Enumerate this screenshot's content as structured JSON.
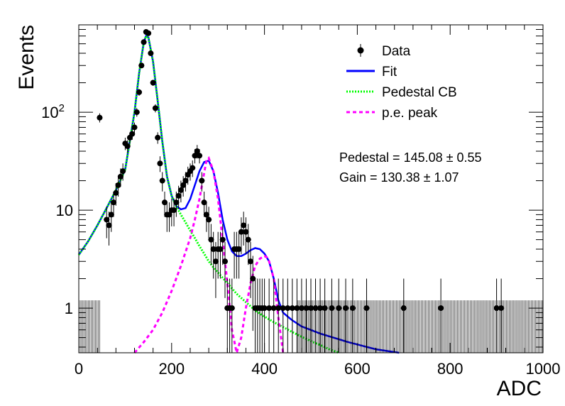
{
  "chart_data": {
    "type": "scatter",
    "xlabel": "ADC",
    "ylabel": "Events",
    "xlim": [
      0,
      1000
    ],
    "ylim": [
      0.35,
      780
    ],
    "yscale": "log",
    "x_ticks": [
      0,
      200,
      400,
      600,
      800,
      1000
    ],
    "y_ticks": [
      {
        "value": 1,
        "label": "1"
      },
      {
        "value": 10,
        "label": "10"
      },
      {
        "value": 100,
        "label": "10",
        "sup": "2"
      }
    ],
    "legend_position": "top-right",
    "legend": [
      {
        "label": "Data",
        "style": "points"
      },
      {
        "label": "Fit",
        "style": "solid",
        "color": "#0000ff"
      },
      {
        "label": "Pedestal CB",
        "style": "dotted",
        "color": "#00ff00"
      },
      {
        "label": "p.e. peak",
        "style": "dashed",
        "color": "#ff00ff"
      }
    ],
    "annotations": [
      "Pedestal = 145.08 ± 0.55",
      "Gain = 130.38 ± 1.07"
    ],
    "series": [
      {
        "name": "Data",
        "style": "points",
        "x": [
          45,
          60,
          65,
          70,
          75,
          80,
          85,
          90,
          95,
          100,
          105,
          110,
          115,
          120,
          125,
          130,
          135,
          140,
          145,
          150,
          155,
          160,
          165,
          170,
          175,
          180,
          185,
          190,
          195,
          200,
          205,
          210,
          215,
          220,
          225,
          230,
          235,
          240,
          245,
          250,
          255,
          260,
          265,
          270,
          275,
          280,
          285,
          290,
          295,
          300,
          305,
          310,
          315,
          320,
          325,
          330,
          335,
          340,
          345,
          350,
          355,
          360,
          365,
          370,
          375,
          380,
          385,
          390,
          395,
          400,
          410,
          420,
          430,
          440,
          450,
          460,
          470,
          480,
          490,
          500,
          510,
          520,
          530,
          545,
          560,
          575,
          590,
          620,
          700,
          780,
          900,
          910
        ],
        "y": [
          88,
          8,
          7,
          9,
          12,
          15,
          18,
          22,
          25,
          48,
          45,
          55,
          60,
          70,
          100,
          160,
          300,
          520,
          660,
          640,
          400,
          200,
          110,
          55,
          30,
          20,
          12,
          9,
          9,
          10,
          10,
          12,
          14,
          16,
          18,
          20,
          23,
          25,
          27,
          36,
          40,
          36,
          20,
          12,
          9,
          8,
          5,
          4,
          3,
          4,
          4,
          5,
          3,
          1,
          1,
          1,
          4,
          4,
          4,
          6,
          7,
          6,
          5,
          3,
          2,
          1,
          1,
          1,
          1,
          1,
          1,
          1,
          1,
          1,
          1,
          1,
          1,
          1,
          1,
          1,
          1,
          1,
          1,
          1,
          1,
          1,
          1,
          1,
          1,
          1,
          1,
          1
        ]
      },
      {
        "name": "Fit",
        "style": "solid",
        "color": "#0000ff",
        "x": [
          0,
          20,
          40,
          60,
          80,
          100,
          120,
          130,
          140,
          145,
          150,
          160,
          170,
          180,
          190,
          200,
          210,
          220,
          230,
          240,
          250,
          260,
          270,
          280,
          290,
          300,
          310,
          320,
          330,
          340,
          350,
          360,
          370,
          380,
          390,
          400,
          410,
          420,
          430,
          440,
          450,
          460,
          480,
          520,
          580,
          640,
          690
        ],
        "y": [
          3.5,
          4.8,
          7,
          10.5,
          16,
          26,
          100,
          250,
          520,
          600,
          580,
          330,
          130,
          50,
          22,
          14,
          11,
          10.2,
          10.5,
          13,
          18,
          25,
          31,
          32,
          25,
          15,
          8,
          5,
          3.8,
          3.4,
          3.4,
          3.6,
          3.9,
          4.1,
          4.0,
          3.6,
          3.0,
          2.0,
          1.2,
          0.9,
          0.82,
          0.75,
          0.65,
          0.55,
          0.45,
          0.38,
          0.34
        ]
      },
      {
        "name": "Pedestal CB",
        "style": "dotted",
        "color": "#00ff00",
        "x": [
          0,
          20,
          40,
          60,
          80,
          100,
          120,
          130,
          140,
          145,
          150,
          160,
          170,
          180,
          190,
          200,
          210,
          220,
          230,
          240,
          250,
          260,
          270,
          280,
          290,
          300,
          320,
          340,
          360,
          380,
          400,
          420,
          440,
          460,
          480,
          500,
          520,
          540,
          560
        ],
        "y": [
          3.5,
          4.8,
          7,
          10.5,
          16,
          26,
          100,
          250,
          520,
          600,
          580,
          330,
          130,
          50,
          22,
          14,
          11,
          9,
          7.5,
          6.2,
          5.2,
          4.3,
          3.6,
          3.0,
          2.6,
          2.3,
          1.8,
          1.4,
          1.15,
          0.95,
          0.82,
          0.72,
          0.64,
          0.57,
          0.51,
          0.46,
          0.42,
          0.38,
          0.35
        ]
      },
      {
        "name": "p.e. peak",
        "style": "dashed",
        "color": "#ff00ff",
        "x": [
          120,
          140,
          160,
          180,
          200,
          220,
          240,
          250,
          260,
          270,
          275,
          280,
          290,
          300,
          310,
          320,
          330,
          340,
          350,
          360,
          370,
          380,
          390,
          400,
          405,
          410,
          420,
          430,
          440
        ],
        "y": [
          0.35,
          0.45,
          0.6,
          0.9,
          1.5,
          2.7,
          5.2,
          8,
          13,
          24,
          32,
          34,
          25,
          13,
          5,
          1.8,
          0.6,
          0.35,
          0.5,
          1.0,
          1.8,
          2.7,
          3.2,
          3.4,
          3.3,
          3.0,
          2.0,
          0.8,
          0.35
        ]
      }
    ]
  }
}
